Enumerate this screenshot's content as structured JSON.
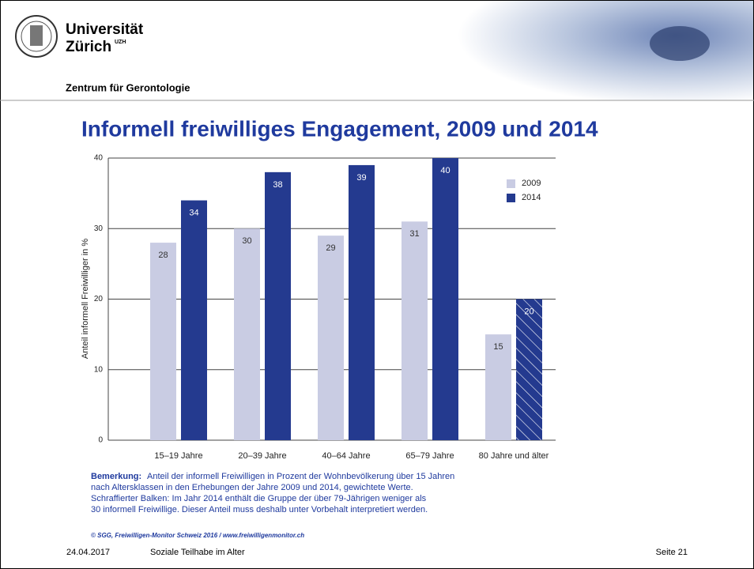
{
  "header": {
    "university": "Universität",
    "city": "Zürich",
    "superscript": "UZH",
    "department": "Zentrum für Gerontologie"
  },
  "chart_data": {
    "type": "bar",
    "title": "Informell freiwilliges Engagement, 2009 und 2014",
    "y_label": "Anteil informell Freiwilliger in %",
    "categories": [
      "15–19 Jahre",
      "20–39 Jahre",
      "40–64 Jahre",
      "65–79 Jahre",
      "80 Jahre und älter"
    ],
    "series": [
      {
        "name": "2009",
        "color": "#c9cce3",
        "label_color": "#333333",
        "values": [
          28,
          30,
          29,
          31,
          15
        ],
        "hatch": [
          false,
          false,
          false,
          false,
          false
        ]
      },
      {
        "name": "2014",
        "color": "#243a8f",
        "label_color": "#ffffff",
        "values": [
          34,
          38,
          39,
          40,
          20
        ],
        "hatch": [
          false,
          false,
          false,
          false,
          true
        ]
      }
    ],
    "ylim": [
      0,
      40
    ],
    "yticks": [
      0,
      10,
      20,
      30,
      40
    ],
    "grid": true,
    "legend": "top-right"
  },
  "note": {
    "label": "Bemerkung:",
    "lines": [
      "Anteil der informell Freiwilligen in Prozent der Wohnbevölkerung über 15 Jahren",
      "nach Altersklassen in den Erhebungen der Jahre 2009 und 2014, gewichtete Werte.",
      "Schraffierter Balken: Im Jahr 2014 enthält die Gruppe der über 79-Jährigen weniger als",
      "30 informell Freiwillige. Dieser Anteil muss deshalb unter Vorbehalt interpretiert werden."
    ],
    "source": "© SGG, Freiwilligen-Monitor Schweiz 2016 / www.freiwilligenmonitor.ch"
  },
  "footer": {
    "date": "24.04.2017",
    "topic": "Soziale Teilhabe im Alter",
    "page": "Seite 21"
  }
}
